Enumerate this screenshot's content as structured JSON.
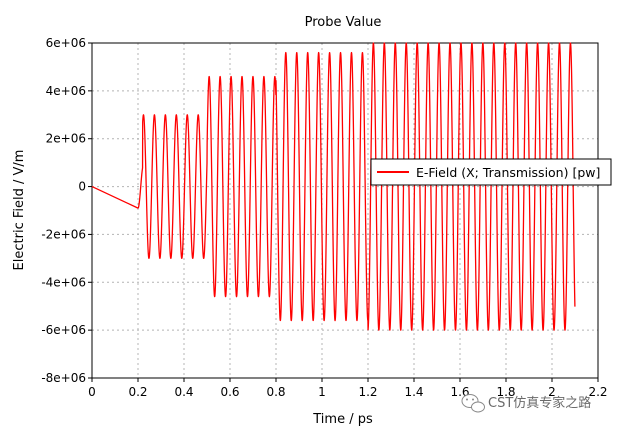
{
  "chart_data": {
    "type": "line",
    "title": "Probe Value",
    "xlabel": "Time / ps",
    "ylabel": "Electric Field / V/m",
    "xlim": [
      0,
      2.2
    ],
    "ylim": [
      -8000000,
      6000000
    ],
    "x_ticks": [
      "0",
      "0.2",
      "0.4",
      "0.6",
      "0.8",
      "1",
      "1.2",
      "1.4",
      "1.6",
      "1.8",
      "2",
      "2.2"
    ],
    "x_tick_values": [
      0,
      0.2,
      0.4,
      0.6,
      0.8,
      1.0,
      1.2,
      1.4,
      1.6,
      1.8,
      2.0,
      2.2
    ],
    "y_ticks": [
      "6e+06",
      "4e+06",
      "2e+06",
      "0",
      "-2e+06",
      "-4e+06",
      "-6e+06",
      "-8e+06"
    ],
    "y_tick_values": [
      6000000,
      4000000,
      2000000,
      0,
      -2000000,
      -4000000,
      -6000000,
      -8000000
    ],
    "grid": true,
    "legend_position": "right",
    "series": [
      {
        "name": "E-Field (X; Transmission) [pw]",
        "color": "#ff0000",
        "signal_start": 0.2,
        "signal_end": 2.1,
        "oscillation_period_ps": 0.0476,
        "envelope": [
          {
            "t_start": 0.0,
            "t_end": 0.2,
            "amplitude": 0
          },
          {
            "t_start": 0.2,
            "t_end": 0.22,
            "amplitude": 900000
          },
          {
            "t_start": 0.22,
            "t_end": 0.5,
            "amplitude": 3000000
          },
          {
            "t_start": 0.5,
            "t_end": 0.8,
            "amplitude": 4600000
          },
          {
            "t_start": 0.8,
            "t_end": 1.2,
            "amplitude": 5600000
          },
          {
            "t_start": 1.2,
            "t_end": 2.1,
            "amplitude": 6000000
          }
        ]
      }
    ]
  },
  "watermark": {
    "text": "CST仿真专家之路",
    "icon": "wechat-icon"
  }
}
